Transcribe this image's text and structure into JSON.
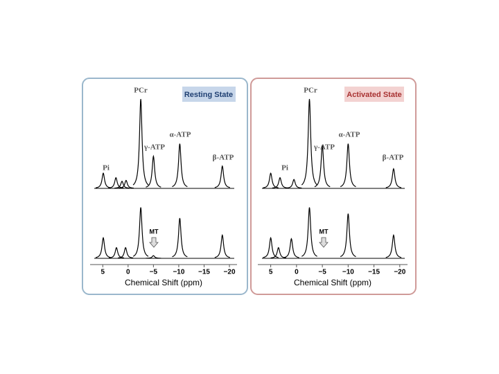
{
  "chart_data": [
    {
      "type": "spectrum",
      "title": "Resting State",
      "xlabel": "Chemical Shift (ppm)",
      "annotations": [
        "PCr",
        "Pi",
        "γ-ATP",
        "α-ATP",
        "β-ATP",
        "MT"
      ],
      "xlim": [
        7.5,
        -21.5
      ],
      "xticks": [
        5,
        0,
        {
          "value": -5,
          "label": "−5"
        },
        {
          "value": -10,
          "label": "−10"
        },
        {
          "value": -15,
          "label": "−15"
        },
        {
          "value": -20,
          "label": "−20"
        }
      ],
      "color": "#000000",
      "series": [
        {
          "x": [
            4.9,
            2.4,
            1.2,
            0.4,
            -2.5,
            -5.0,
            -10.2,
            -18.6
          ],
          "values": [
            17,
            12,
            8,
            9,
            100,
            36,
            50,
            25
          ]
        },
        {
          "x": [
            4.9,
            2.3,
            0.5,
            -2.5,
            -5.0,
            -10.2,
            -18.6
          ],
          "values": [
            23,
            12,
            12,
            57,
            3,
            45,
            26
          ]
        }
      ]
    },
    {
      "type": "spectrum",
      "title": "Activated State",
      "xlabel": "Chemical Shift (ppm)",
      "annotations": [
        "PCr",
        "Pi",
        "γ-ATP",
        "α-ATP",
        "β-ATP",
        "MT"
      ],
      "xlim": [
        7.5,
        -21.5
      ],
      "xticks": [
        5,
        0,
        {
          "value": -5,
          "label": "−5"
        },
        {
          "value": -10,
          "label": "−10"
        },
        {
          "value": -15,
          "label": "−15"
        },
        {
          "value": -20,
          "label": "−20"
        }
      ],
      "color": "#000000",
      "series": [
        {
          "x": [
            5.0,
            3.2,
            0.5,
            -2.5,
            -5.0,
            -10.0,
            -18.8
          ],
          "values": [
            17,
            12,
            10,
            100,
            48,
            50,
            22
          ]
        },
        {
          "x": [
            5.0,
            3.5,
            1.0,
            -2.5,
            -10.0,
            -18.8
          ],
          "values": [
            23,
            12,
            22,
            57,
            50,
            26
          ]
        }
      ]
    }
  ]
}
